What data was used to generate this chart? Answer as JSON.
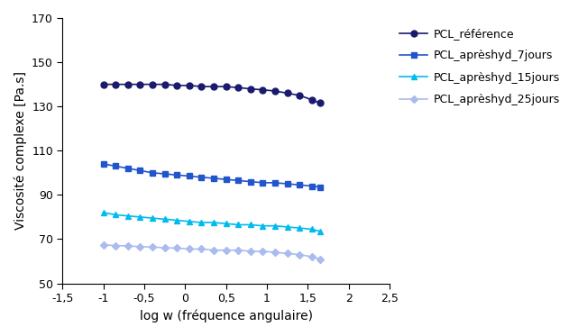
{
  "xlabel": "log w (fréquence angulaire)",
  "ylabel": "Viscosité complexe [Pa.s]",
  "xlim": [
    -1.5,
    2.5
  ],
  "ylim": [
    50,
    170
  ],
  "xticks": [
    -1.5,
    -1.0,
    -0.5,
    0.0,
    0.5,
    1.0,
    1.5,
    2.0,
    2.5
  ],
  "yticks": [
    50,
    70,
    90,
    110,
    130,
    150,
    170
  ],
  "series": [
    {
      "label": "PCL_référence",
      "color": "#1a1a6e",
      "marker": "o",
      "markersize": 5,
      "x": [
        -1.0,
        -0.85,
        -0.7,
        -0.55,
        -0.4,
        -0.25,
        -0.1,
        0.05,
        0.2,
        0.35,
        0.5,
        0.65,
        0.8,
        0.95,
        1.1,
        1.25,
        1.4,
        1.55,
        1.65
      ],
      "y": [
        140.0,
        140.0,
        140.0,
        140.0,
        140.0,
        140.0,
        139.5,
        139.5,
        139.0,
        139.0,
        139.0,
        138.5,
        138.0,
        137.5,
        137.0,
        136.0,
        135.0,
        133.0,
        131.5
      ]
    },
    {
      "label": "PCL_aprèshyd_7jours",
      "color": "#2255cc",
      "marker": "s",
      "markersize": 5,
      "x": [
        -1.0,
        -0.85,
        -0.7,
        -0.55,
        -0.4,
        -0.25,
        -0.1,
        0.05,
        0.2,
        0.35,
        0.5,
        0.65,
        0.8,
        0.95,
        1.1,
        1.25,
        1.4,
        1.55,
        1.65
      ],
      "y": [
        104.0,
        103.0,
        102.0,
        101.0,
        100.0,
        99.5,
        99.0,
        98.5,
        98.0,
        97.5,
        97.0,
        96.5,
        96.0,
        95.5,
        95.5,
        95.0,
        94.5,
        94.0,
        93.5
      ]
    },
    {
      "label": "PCL_aprèshyd_15jours",
      "color": "#00bbee",
      "marker": "^",
      "markersize": 5,
      "x": [
        -1.0,
        -0.85,
        -0.7,
        -0.55,
        -0.4,
        -0.25,
        -0.1,
        0.05,
        0.2,
        0.35,
        0.5,
        0.65,
        0.8,
        0.95,
        1.1,
        1.25,
        1.4,
        1.55,
        1.65
      ],
      "y": [
        82.0,
        81.0,
        80.5,
        80.0,
        79.5,
        79.0,
        78.5,
        78.0,
        77.5,
        77.5,
        77.0,
        76.5,
        76.5,
        76.0,
        76.0,
        75.5,
        75.0,
        74.5,
        73.5
      ]
    },
    {
      "label": "PCL_aprèshyd_25jours",
      "color": "#aabbee",
      "marker": "D",
      "markersize": 4,
      "x": [
        -1.0,
        -0.85,
        -0.7,
        -0.55,
        -0.4,
        -0.25,
        -0.1,
        0.05,
        0.2,
        0.35,
        0.5,
        0.65,
        0.8,
        0.95,
        1.1,
        1.25,
        1.4,
        1.55,
        1.65
      ],
      "y": [
        67.5,
        67.0,
        67.0,
        66.5,
        66.5,
        66.0,
        66.0,
        65.5,
        65.5,
        65.0,
        65.0,
        65.0,
        64.5,
        64.5,
        64.0,
        63.5,
        63.0,
        62.0,
        61.0
      ]
    }
  ],
  "background_color": "#ffffff",
  "linewidth": 1.2,
  "tick_fontsize": 9,
  "label_fontsize": 10,
  "legend_fontsize": 9
}
